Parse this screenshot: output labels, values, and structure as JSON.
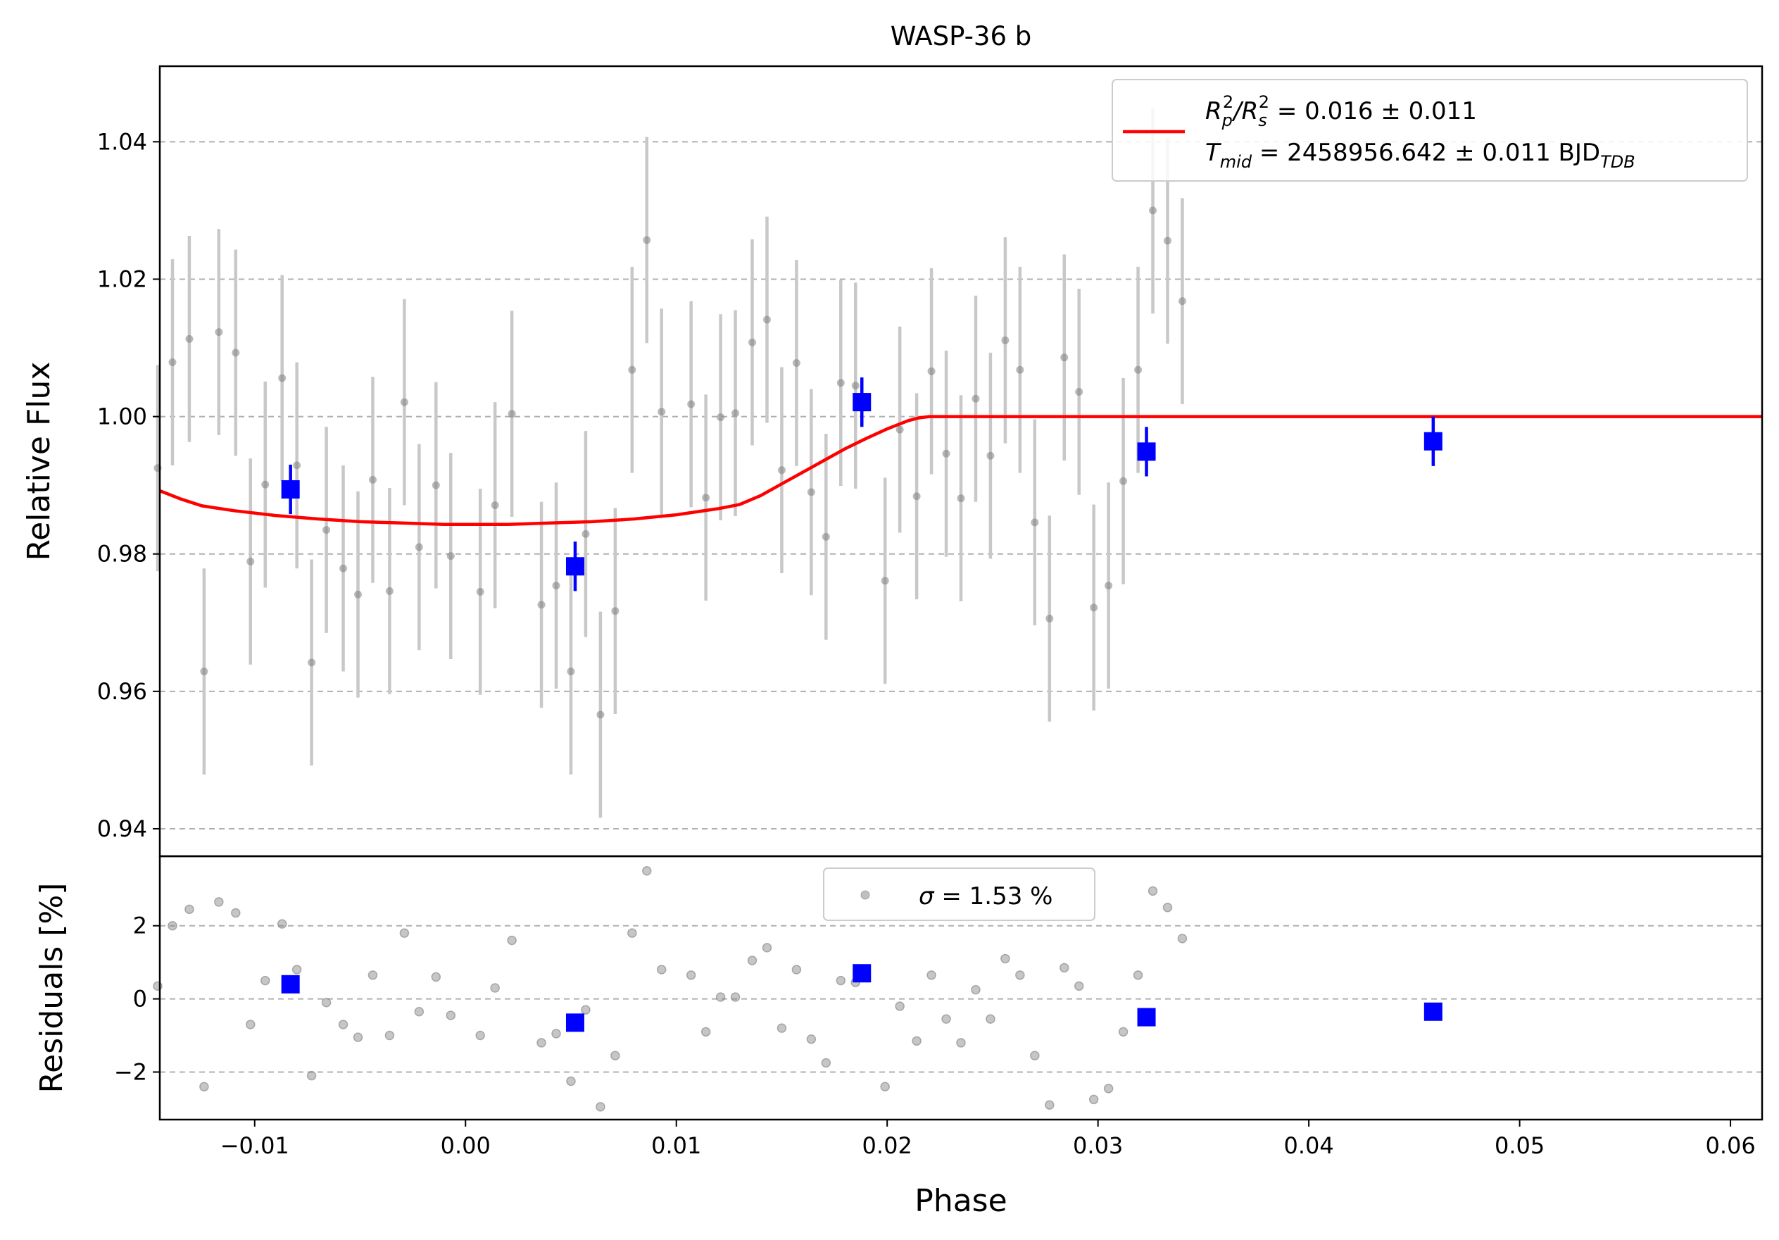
{
  "chart_data": [
    {
      "type": "scatter",
      "title": "WASP-36 b",
      "xlabel": "",
      "ylabel": "Relative Flux",
      "xlim": [
        -0.0145,
        0.0615
      ],
      "ylim": [
        0.936,
        1.051
      ],
      "xticks": [
        -0.01,
        0.0,
        0.01,
        0.02,
        0.03,
        0.04,
        0.05,
        0.06
      ],
      "xtick_labels": [
        "−0.01",
        "0.00",
        "0.01",
        "0.02",
        "0.03",
        "0.04",
        "0.05",
        "0.06"
      ],
      "yticks": [
        0.94,
        0.96,
        0.98,
        1.0,
        1.02,
        1.04
      ],
      "ytick_labels": [
        "0.94",
        "0.96",
        "0.98",
        "1.00",
        "1.02",
        "1.04"
      ],
      "grid": "horizontal dashed",
      "legend_position": "top-right",
      "legend": {
        "line1_parts": [
          "R",
          "p",
          "2",
          "/R",
          "s",
          "2",
          " = 0.016 ± 0.011"
        ],
        "line2_parts": [
          "T",
          "mid",
          " = 2458956.642 ± 0.011 BJD",
          "TDB"
        ]
      },
      "colors": {
        "data": "#808080",
        "errorbar": "#c8c8c8",
        "binned": "#0000ff",
        "model": "#ff0000"
      },
      "series": [
        {
          "kind": "data",
          "points": [
            [
              -0.0146,
              0.9925,
              0.015
            ],
            [
              -0.0139,
              1.0079,
              0.015
            ],
            [
              -0.0131,
              1.0113,
              0.015
            ],
            [
              -0.0124,
              0.9629,
              0.015
            ],
            [
              -0.0117,
              1.0123,
              0.015
            ],
            [
              -0.0109,
              1.0093,
              0.015
            ],
            [
              -0.0102,
              0.9789,
              0.015
            ],
            [
              -0.0095,
              0.9901,
              0.015
            ],
            [
              -0.0087,
              1.0056,
              0.015
            ],
            [
              -0.008,
              0.9929,
              0.015
            ],
            [
              -0.0073,
              0.9642,
              0.015
            ],
            [
              -0.0066,
              0.9835,
              0.015
            ],
            [
              -0.0058,
              0.9779,
              0.015
            ],
            [
              -0.0051,
              0.9741,
              0.015
            ],
            [
              -0.0044,
              0.9908,
              0.015
            ],
            [
              -0.0036,
              0.9746,
              0.015
            ],
            [
              -0.0029,
              1.0021,
              0.015
            ],
            [
              -0.0022,
              0.981,
              0.015
            ],
            [
              -0.0014,
              0.99,
              0.015
            ],
            [
              -0.0007,
              0.9797,
              0.015
            ],
            [
              0.0007,
              0.9745,
              0.015
            ],
            [
              0.0014,
              0.9871,
              0.015
            ],
            [
              0.0022,
              1.0004,
              0.015
            ],
            [
              0.0036,
              0.9726,
              0.015
            ],
            [
              0.0043,
              0.9754,
              0.015
            ],
            [
              0.005,
              0.9629,
              0.015
            ],
            [
              0.0057,
              0.9829,
              0.015
            ],
            [
              0.0064,
              0.9566,
              0.015
            ],
            [
              0.0071,
              0.9717,
              0.015
            ],
            [
              0.0079,
              1.0068,
              0.015
            ],
            [
              0.0086,
              1.0257,
              0.015
            ],
            [
              0.0093,
              1.0007,
              0.015
            ],
            [
              0.0107,
              1.0018,
              0.015
            ],
            [
              0.0114,
              0.9882,
              0.015
            ],
            [
              0.0121,
              0.9999,
              0.015
            ],
            [
              0.0128,
              1.0005,
              0.015
            ],
            [
              0.0136,
              1.0108,
              0.015
            ],
            [
              0.0143,
              1.0141,
              0.015
            ],
            [
              0.015,
              0.9922,
              0.015
            ],
            [
              0.0157,
              1.0078,
              0.015
            ],
            [
              0.0164,
              0.989,
              0.015
            ],
            [
              0.0171,
              0.9825,
              0.015
            ],
            [
              0.0178,
              1.0049,
              0.015
            ],
            [
              0.0185,
              1.0045,
              0.015
            ],
            [
              0.0199,
              0.9761,
              0.015
            ],
            [
              0.0206,
              0.9981,
              0.015
            ],
            [
              0.0214,
              0.9884,
              0.015
            ],
            [
              0.0221,
              1.0066,
              0.015
            ],
            [
              0.0228,
              0.9946,
              0.015
            ],
            [
              0.0235,
              0.9881,
              0.015
            ],
            [
              0.0242,
              1.0026,
              0.015
            ],
            [
              0.0249,
              0.9943,
              0.015
            ],
            [
              0.0256,
              1.0111,
              0.015
            ],
            [
              0.0263,
              1.0068,
              0.015
            ],
            [
              0.027,
              0.9846,
              0.015
            ],
            [
              0.0277,
              0.9706,
              0.015
            ],
            [
              0.0284,
              1.0086,
              0.015
            ],
            [
              0.0291,
              1.0036,
              0.015
            ],
            [
              0.0298,
              0.9722,
              0.015
            ],
            [
              0.0305,
              0.9754,
              0.015
            ],
            [
              0.0312,
              0.9906,
              0.015
            ],
            [
              0.0319,
              1.0068,
              0.015
            ],
            [
              0.0326,
              1.03,
              0.015
            ],
            [
              0.0333,
              1.0256,
              0.015
            ],
            [
              0.034,
              1.0168,
              0.015
            ]
          ]
        },
        {
          "kind": "binned",
          "points": [
            [
              -0.0083,
              0.9894,
              0.0036
            ],
            [
              0.0052,
              0.9782,
              0.0036
            ],
            [
              0.0188,
              1.0021,
              0.0036
            ],
            [
              0.0323,
              0.9949,
              0.0036
            ],
            [
              0.0459,
              0.9964,
              0.0036
            ]
          ]
        },
        {
          "kind": "model",
          "x": [
            -0.0145,
            -0.0135,
            -0.0125,
            -0.011,
            -0.009,
            -0.007,
            -0.005,
            -0.003,
            -0.001,
            0.0,
            0.002,
            0.004,
            0.006,
            0.008,
            0.01,
            0.012,
            0.0125,
            0.013,
            0.014,
            0.015,
            0.016,
            0.017,
            0.018,
            0.019,
            0.02,
            0.021,
            0.0215,
            0.022,
            0.0222,
            0.03,
            0.04,
            0.05,
            0.0615
          ],
          "y": [
            0.9892,
            0.988,
            0.987,
            0.9863,
            0.9856,
            0.9851,
            0.9847,
            0.9845,
            0.9843,
            0.9843,
            0.9843,
            0.9845,
            0.9847,
            0.9851,
            0.9857,
            0.9866,
            0.9869,
            0.9872,
            0.9885,
            0.9902,
            0.9919,
            0.9936,
            0.9953,
            0.9968,
            0.9982,
            0.9994,
            0.9998,
            1.0,
            1.0,
            1.0,
            1.0,
            1.0,
            1.0
          ]
        }
      ]
    },
    {
      "type": "scatter",
      "title": "",
      "xlabel": "Phase",
      "ylabel": "Residuals [%]",
      "xlim": [
        -0.0145,
        0.0615
      ],
      "ylim": [
        -3.3,
        3.9
      ],
      "xticks": [
        -0.01,
        0.0,
        0.01,
        0.02,
        0.03,
        0.04,
        0.05,
        0.06
      ],
      "xtick_labels": [
        "−0.01",
        "0.00",
        "0.01",
        "0.02",
        "0.03",
        "0.04",
        "0.05",
        "0.06"
      ],
      "yticks": [
        -2,
        0,
        2
      ],
      "ytick_labels": [
        "−2",
        "0",
        "2"
      ],
      "grid": "horizontal dashed",
      "legend_position": "top-center",
      "legend": {
        "sigma_symbol": "σ",
        "sigma_text": " = 1.53 %"
      },
      "series": [
        {
          "kind": "residuals",
          "points": [
            [
              -0.0146,
              0.35
            ],
            [
              -0.0139,
              2.0
            ],
            [
              -0.0131,
              2.45
            ],
            [
              -0.0124,
              -2.4
            ],
            [
              -0.0117,
              2.65
            ],
            [
              -0.0109,
              2.35
            ],
            [
              -0.0102,
              -0.7
            ],
            [
              -0.0095,
              0.5
            ],
            [
              -0.0087,
              2.05
            ],
            [
              -0.008,
              0.8
            ],
            [
              -0.0073,
              -2.1
            ],
            [
              -0.0066,
              -0.1
            ],
            [
              -0.0058,
              -0.7
            ],
            [
              -0.0051,
              -1.05
            ],
            [
              -0.0044,
              0.65
            ],
            [
              -0.0036,
              -1.0
            ],
            [
              -0.0029,
              1.8
            ],
            [
              -0.0022,
              -0.35
            ],
            [
              -0.0014,
              0.6
            ],
            [
              -0.0007,
              -0.45
            ],
            [
              0.0007,
              -1.0
            ],
            [
              0.0014,
              0.3
            ],
            [
              0.0022,
              1.6
            ],
            [
              0.0036,
              -1.2
            ],
            [
              0.0043,
              -0.95
            ],
            [
              0.005,
              -2.25
            ],
            [
              0.0057,
              -0.3
            ],
            [
              0.0064,
              -2.95
            ],
            [
              0.0071,
              -1.55
            ],
            [
              0.0079,
              1.8
            ],
            [
              0.0086,
              3.5
            ],
            [
              0.0093,
              0.8
            ],
            [
              0.0107,
              0.65
            ],
            [
              0.0114,
              -0.9
            ],
            [
              0.0121,
              0.05
            ],
            [
              0.0128,
              0.05
            ],
            [
              0.0136,
              1.05
            ],
            [
              0.0143,
              1.4
            ],
            [
              0.015,
              -0.8
            ],
            [
              0.0157,
              0.8
            ],
            [
              0.0164,
              -1.1
            ],
            [
              0.0171,
              -1.75
            ],
            [
              0.0178,
              0.5
            ],
            [
              0.0185,
              0.45
            ],
            [
              0.0199,
              -2.4
            ],
            [
              0.0206,
              -0.2
            ],
            [
              0.0214,
              -1.15
            ],
            [
              0.0221,
              0.65
            ],
            [
              0.0228,
              -0.55
            ],
            [
              0.0235,
              -1.2
            ],
            [
              0.0242,
              0.25
            ],
            [
              0.0249,
              -0.55
            ],
            [
              0.0256,
              1.1
            ],
            [
              0.0263,
              0.65
            ],
            [
              0.027,
              -1.55
            ],
            [
              0.0277,
              -2.9
            ],
            [
              0.0284,
              0.85
            ],
            [
              0.0291,
              0.35
            ],
            [
              0.0298,
              -2.75
            ],
            [
              0.0305,
              -2.45
            ],
            [
              0.0312,
              -0.9
            ],
            [
              0.0319,
              0.65
            ],
            [
              0.0326,
              2.95
            ],
            [
              0.0333,
              2.5
            ],
            [
              0.034,
              1.65
            ]
          ]
        },
        {
          "kind": "binned",
          "points": [
            [
              -0.0083,
              0.4
            ],
            [
              0.0052,
              -0.65
            ],
            [
              0.0188,
              0.7
            ],
            [
              0.0323,
              -0.5
            ],
            [
              0.0459,
              -0.35
            ]
          ]
        }
      ]
    }
  ]
}
